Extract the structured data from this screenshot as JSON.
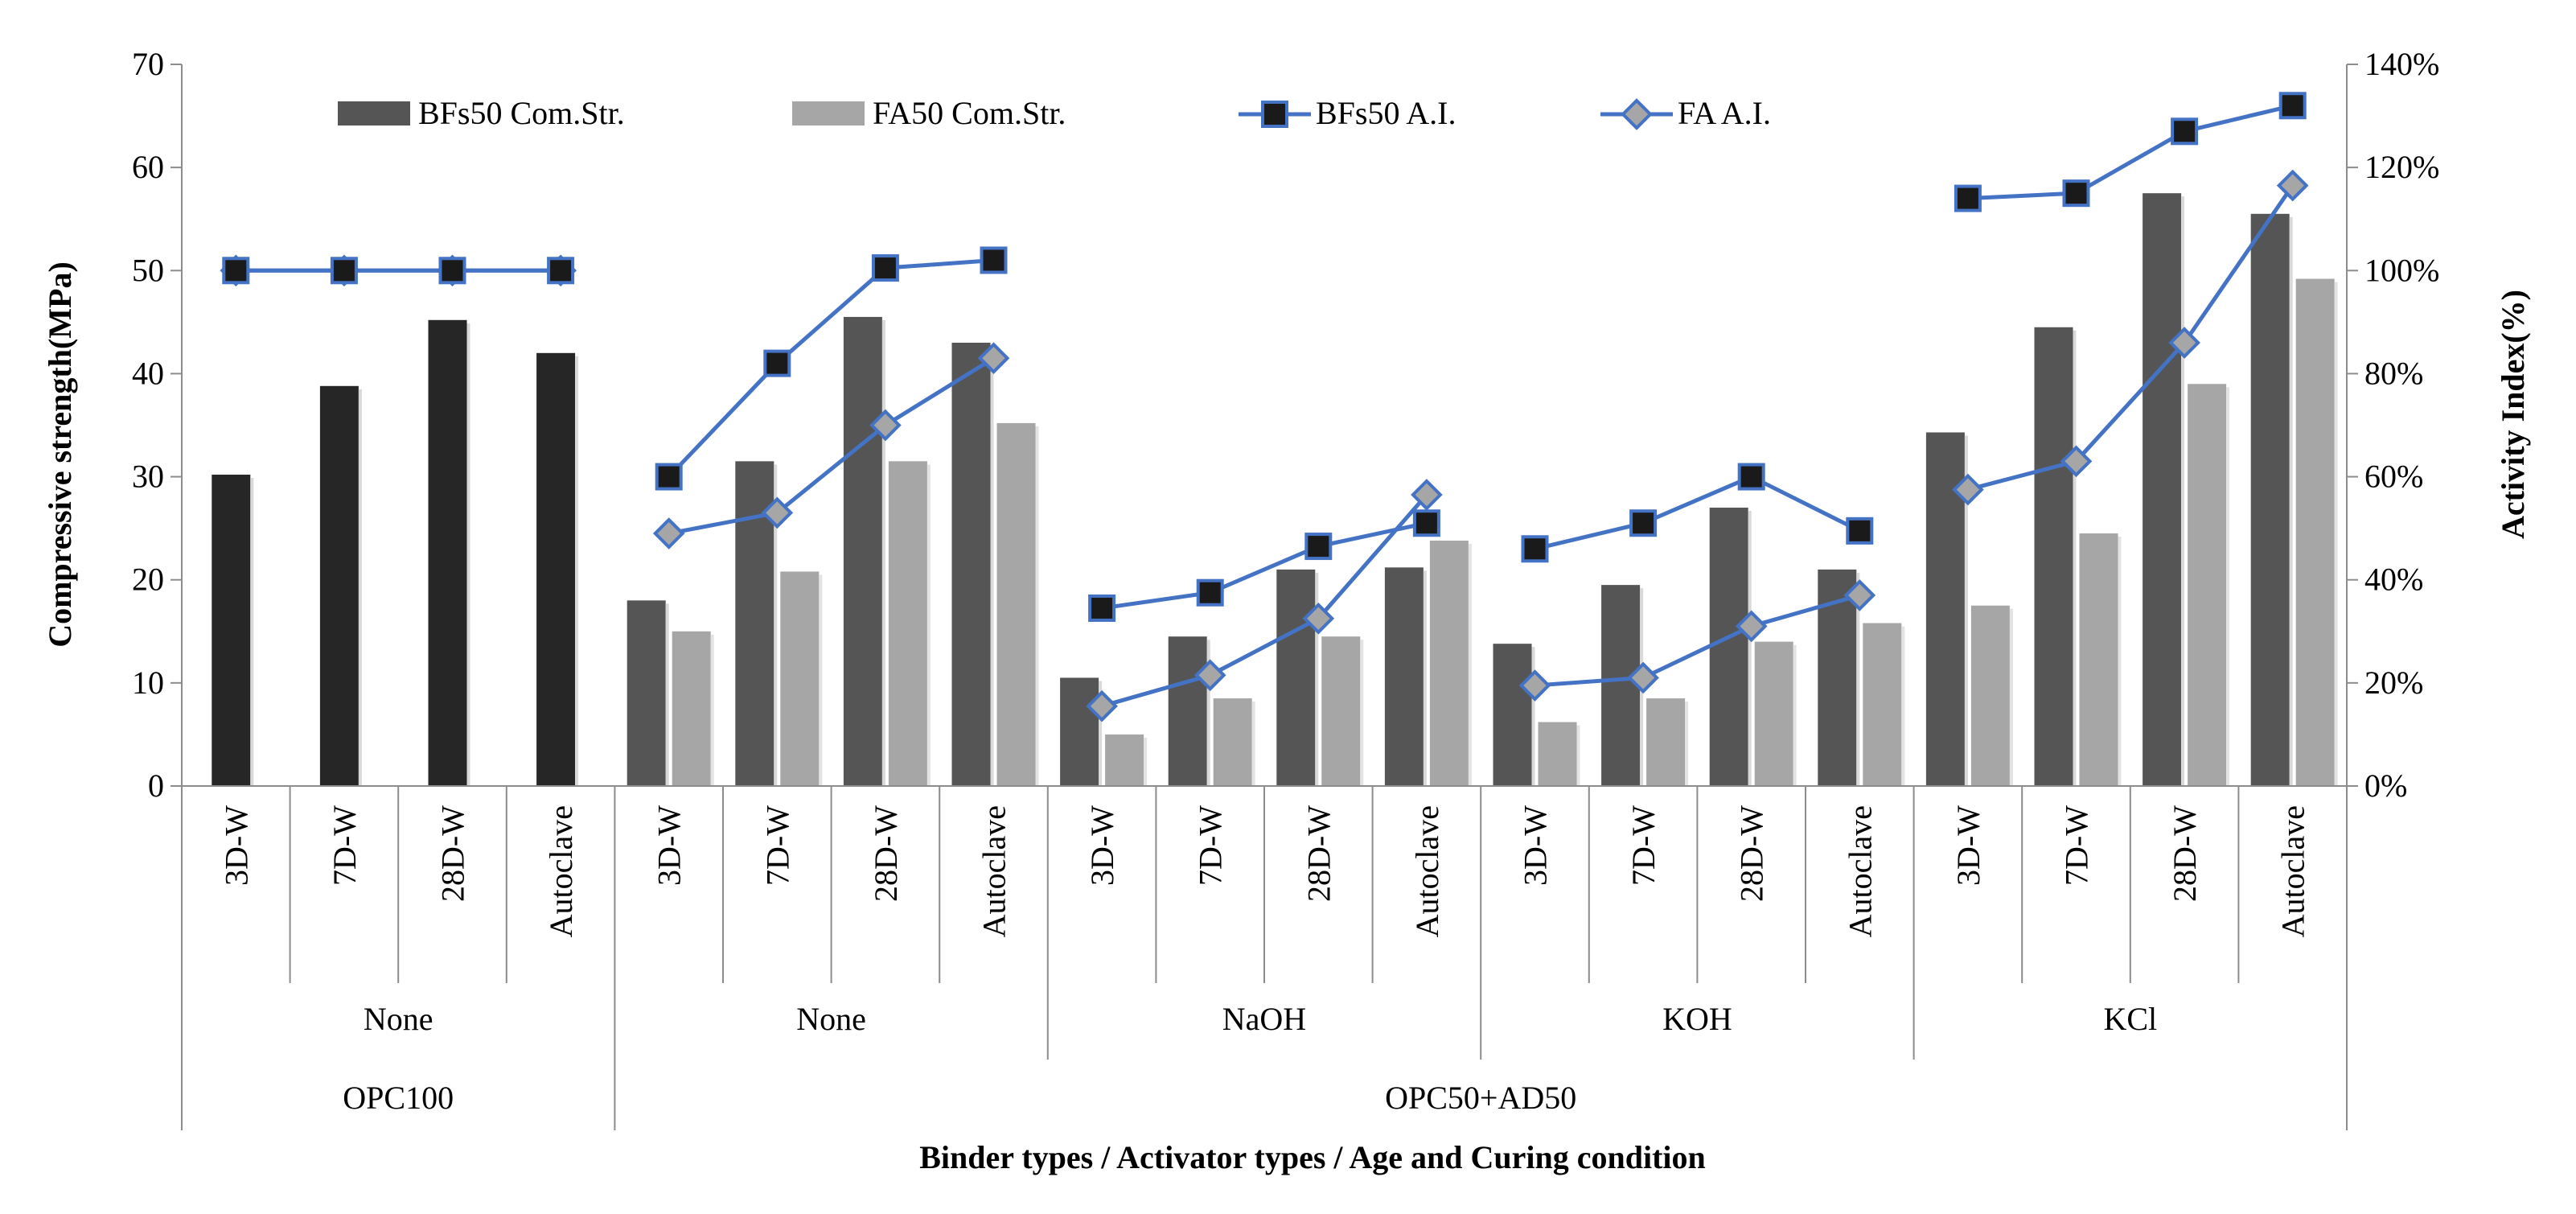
{
  "chart_data": {
    "type": "bar",
    "title": "",
    "xlabel": "Binder types / Activator types / Age and Curing condition",
    "ylabel": "Compressive strength(MPa)",
    "y2label": "Activity Index(%)",
    "ylim": [
      0,
      70
    ],
    "yticks": [
      "0",
      "10",
      "20",
      "30",
      "40",
      "50",
      "60",
      "70"
    ],
    "y2lim": [
      0,
      140
    ],
    "y2ticks": [
      "0%",
      "20%",
      "40%",
      "60%",
      "80%",
      "100%",
      "120%",
      "140%"
    ],
    "legend_position": "top",
    "categories": [
      "3D-W",
      "7D-W",
      "28D-W",
      "Autoclave",
      "3D-W",
      "7D-W",
      "28D-W",
      "Autoclave",
      "3D-W",
      "7D-W",
      "28D-W",
      "Autoclave",
      "3D-W",
      "7D-W",
      "28D-W",
      "Autoclave",
      "3D-W",
      "7D-W",
      "28D-W",
      "Autoclave"
    ],
    "activator_groups": [
      {
        "label": "None",
        "count": 4
      },
      {
        "label": "None",
        "count": 4
      },
      {
        "label": "NaOH",
        "count": 4
      },
      {
        "label": "KOH",
        "count": 4
      },
      {
        "label": "KCl",
        "count": 4
      }
    ],
    "binder_groups": [
      {
        "label": "OPC100",
        "count": 4
      },
      {
        "label": "OPC50+AD50",
        "count": 16
      }
    ],
    "series": [
      {
        "name": "BFs50 Com.Str.",
        "kind": "bar",
        "axis": "left",
        "color": "#555555",
        "values": [
          null,
          null,
          null,
          null,
          18,
          31.5,
          45.5,
          43,
          10.5,
          14.5,
          21,
          21.2,
          13.8,
          19.5,
          27,
          21,
          34.3,
          44.5,
          57.5,
          55.5
        ]
      },
      {
        "name": "FA50 Com.Str.",
        "kind": "bar",
        "axis": "left",
        "color": "#a6a6a6",
        "values": [
          null,
          null,
          null,
          null,
          15,
          20.8,
          31.5,
          35.2,
          5,
          8.5,
          14.5,
          23.8,
          6.2,
          8.5,
          14,
          15.8,
          17.5,
          24.5,
          39,
          49.2
        ]
      },
      {
        "name": "OPC100 Com.Str.",
        "kind": "bar",
        "axis": "left",
        "color": "#262626",
        "values": [
          30.2,
          38.8,
          45.2,
          42,
          null,
          null,
          null,
          null,
          null,
          null,
          null,
          null,
          null,
          null,
          null,
          null,
          null,
          null,
          null,
          null
        ]
      },
      {
        "name": "BFs50 A.I.",
        "kind": "line",
        "axis": "right",
        "marker": "square",
        "color": "#4472c4",
        "values": [
          100,
          100,
          100,
          100,
          60,
          82,
          100.5,
          102,
          34.5,
          37.5,
          46.5,
          51,
          46,
          51,
          60,
          49.5,
          114,
          115,
          127,
          132
        ]
      },
      {
        "name": "FA A.I.",
        "kind": "line",
        "axis": "right",
        "marker": "diamond",
        "color": "#4472c4",
        "values": [
          100,
          100,
          100,
          100,
          49,
          53,
          70,
          83,
          15.5,
          21.5,
          32.5,
          56.5,
          19.5,
          21,
          31,
          37,
          57.5,
          63,
          86,
          116.5
        ]
      }
    ],
    "legend": [
      {
        "label": "BFs50 Com.Str.",
        "symbol": "bar",
        "color": "#555555"
      },
      {
        "label": "FA50 Com.Str.",
        "symbol": "bar",
        "color": "#a6a6a6"
      },
      {
        "label": "BFs50 A.I.",
        "symbol": "line-square",
        "color": "#4472c4"
      },
      {
        "label": "FA A.I.",
        "symbol": "line-diamond",
        "color": "#4472c4"
      }
    ]
  }
}
